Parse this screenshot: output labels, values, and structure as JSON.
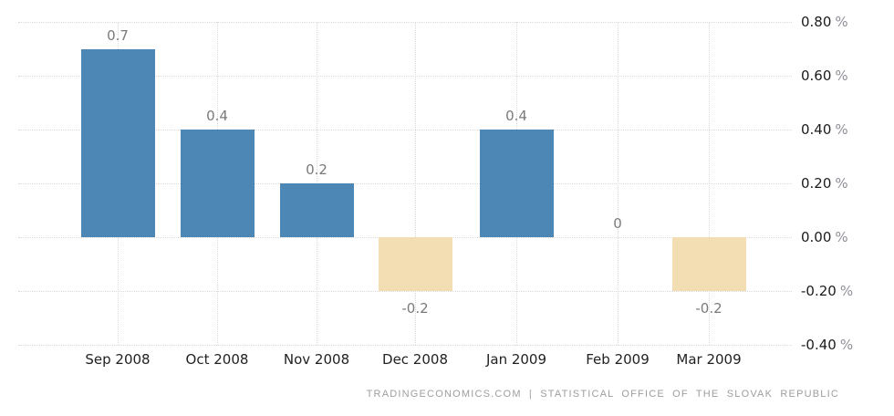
{
  "chart_data": {
    "type": "bar",
    "title": "",
    "categories": [
      "Sep 2008",
      "Oct 2008",
      "Nov 2008",
      "Dec 2008",
      "Jan 2009",
      "Feb 2009",
      "Mar 2009"
    ],
    "values": [
      0.7,
      0.4,
      0.2,
      -0.2,
      0.4,
      0,
      -0.2
    ],
    "bar_labels": [
      "0.7",
      "0.4",
      "0.2",
      "-0.2",
      "0.4",
      "0",
      "-0.2"
    ],
    "xlabel": "",
    "ylabel": "",
    "y_axis": {
      "side": "right",
      "unit": "%",
      "tick_labels": [
        "0.80",
        "0.60",
        "0.40",
        "0.20",
        "0.00",
        "-0.20",
        "-0.40"
      ],
      "tick_values": [
        0.8,
        0.6,
        0.4,
        0.2,
        0.0,
        -0.2,
        -0.4
      ],
      "ylim": [
        -0.4,
        0.8
      ]
    },
    "grid": "dotted-horizontal-and-vertical",
    "legend": "none",
    "colors": {
      "positive_bar": "#4d87b5",
      "negative_bar": "#f2deb2",
      "grid": "#d9d9d9",
      "axis_text": "#222222",
      "bar_label_text": "#7a7a7a",
      "unit_text": "#8f8f99",
      "attribution_text": "#9e9e9e"
    }
  },
  "attribution": {
    "text": "TRADINGECONOMICS.COM | STATISTICAL OFFICE OF THE SLOVAK REPUBLIC"
  }
}
